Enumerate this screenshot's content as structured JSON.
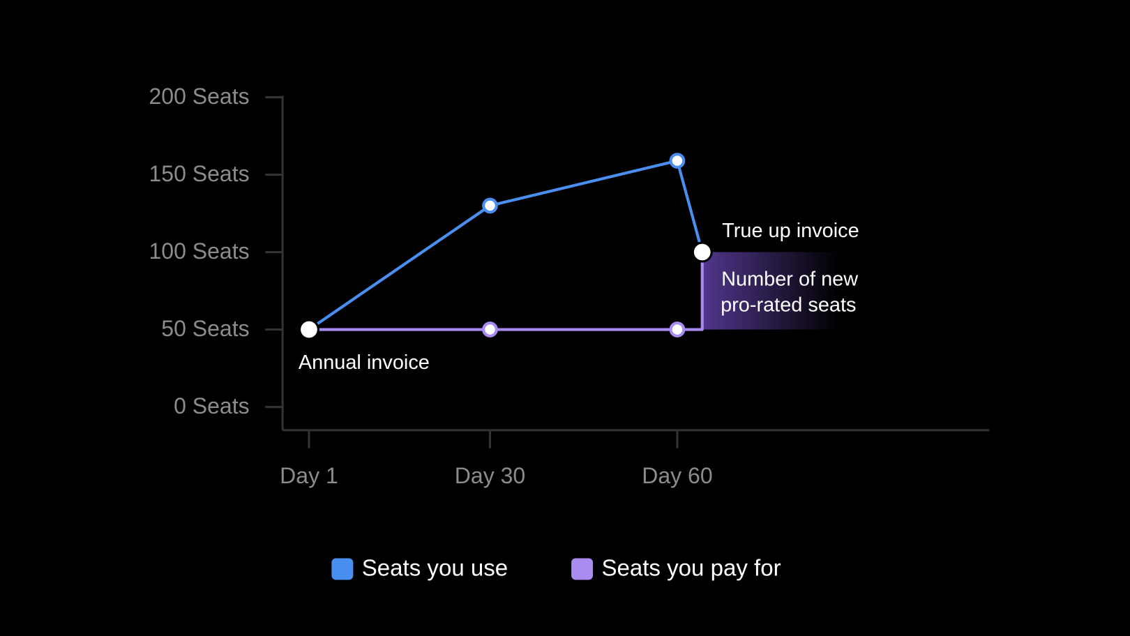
{
  "chart_data": {
    "type": "line",
    "x": [
      1,
      30,
      60,
      64
    ],
    "xlim": [
      -3,
      110
    ],
    "xticks": [
      {
        "value": 1,
        "label": "Day 1"
      },
      {
        "value": 30,
        "label": "Day 30"
      },
      {
        "value": 60,
        "label": "Day 60"
      }
    ],
    "ylim": [
      -15,
      200
    ],
    "yticks": [
      {
        "value": 0,
        "label": "0 Seats"
      },
      {
        "value": 50,
        "label": "50 Seats"
      },
      {
        "value": 100,
        "label": "100 Seats"
      },
      {
        "value": 150,
        "label": "150 Seats"
      },
      {
        "value": 200,
        "label": "200 Seats"
      }
    ],
    "grid": false,
    "legend": "bottom",
    "series": [
      {
        "name": "Seats you use",
        "color": "#4a8ef0",
        "x": [
          1,
          30,
          60,
          64
        ],
        "values": [
          50,
          130,
          159,
          100
        ]
      },
      {
        "name": "Seats you pay for",
        "color": "#a98bf2",
        "x": [
          1,
          30,
          60,
          64,
          64
        ],
        "values": [
          50,
          50,
          50,
          50,
          100
        ]
      }
    ],
    "annotations": [
      {
        "text": [
          "Annual invoice"
        ]
      },
      {
        "text": [
          "True up invoice"
        ]
      },
      {
        "text": [
          "Number of new",
          "pro-rated seats"
        ]
      }
    ]
  }
}
